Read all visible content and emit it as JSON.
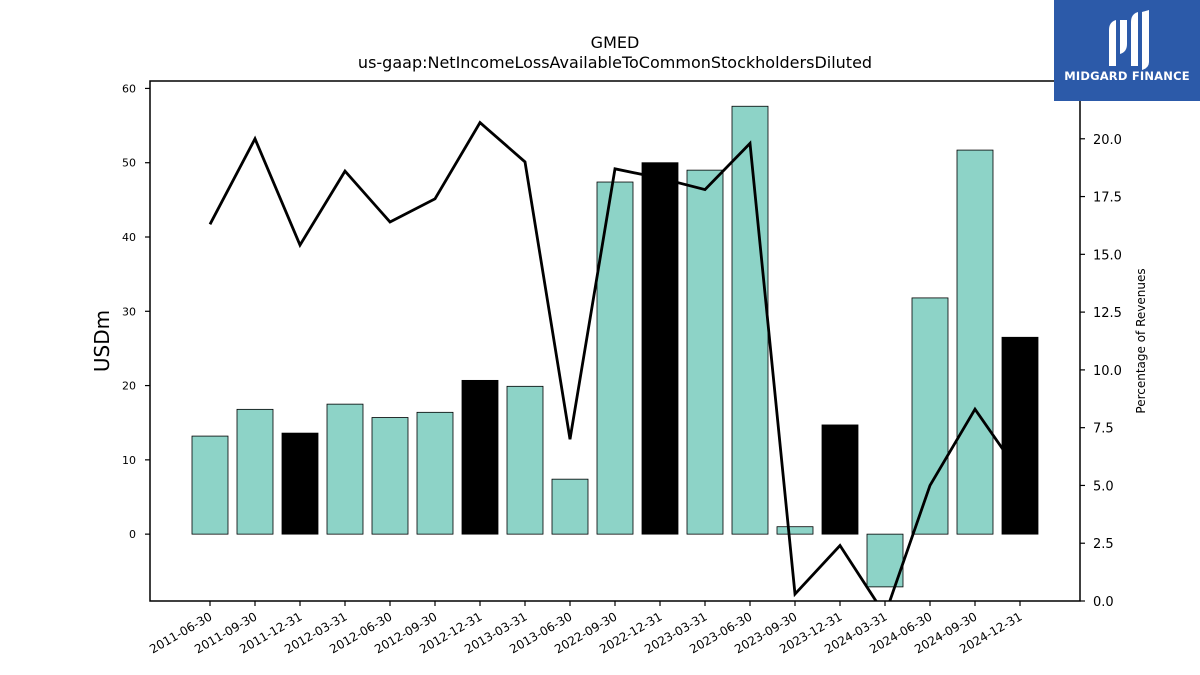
{
  "chart_data": {
    "type": "bar",
    "title": "GMED",
    "subtitle": "us-gaap:NetIncomeLossAvailableToCommonStockholdersDiluted",
    "ylabel": "USDm",
    "y2label": "Percentage of Revenues",
    "categories": [
      "2011-06-30",
      "2011-09-30",
      "2011-12-31",
      "2012-03-31",
      "2012-06-30",
      "2012-09-30",
      "2012-12-31",
      "2013-03-31",
      "2013-06-30",
      "2022-09-30",
      "2022-12-31",
      "2023-03-31",
      "2023-06-30",
      "2023-09-30",
      "2023-12-31",
      "2024-03-31",
      "2024-06-30",
      "2024-09-30",
      "2024-12-31"
    ],
    "series": [
      {
        "type": "bar",
        "values": [
          13.2,
          16.8,
          13.6,
          17.5,
          15.7,
          16.4,
          20.7,
          19.9,
          7.4,
          47.4,
          50.0,
          49.0,
          57.6,
          1.0,
          14.7,
          -7.1,
          31.8,
          51.7,
          26.5
        ],
        "highlight": [
          false,
          false,
          true,
          false,
          false,
          false,
          true,
          false,
          false,
          false,
          true,
          false,
          false,
          false,
          true,
          false,
          false,
          false,
          true
        ]
      },
      {
        "type": "line",
        "axis": "right",
        "values": [
          16.3,
          20.0,
          15.4,
          18.6,
          16.4,
          17.4,
          20.7,
          19.0,
          7.0,
          18.7,
          18.3,
          17.8,
          19.8,
          0.3,
          2.4,
          -0.6,
          5.0,
          8.3,
          5.5
        ]
      }
    ],
    "ylim": [
      -9,
      61
    ],
    "y2lim": [
      0,
      22.5
    ],
    "yticks": [
      0,
      10,
      20,
      30,
      40,
      50,
      60
    ],
    "y2ticks": [
      "0.0",
      "2.5",
      "5.0",
      "7.5",
      "10.0",
      "12.5",
      "15.0",
      "17.5",
      "20.0"
    ],
    "colors": {
      "bar": "#8dd3c7",
      "bar_highlight": "#000000",
      "line": "#000000"
    }
  },
  "logo": {
    "text": "MIDGARD FINANCE",
    "background": "#2c5aa9"
  }
}
